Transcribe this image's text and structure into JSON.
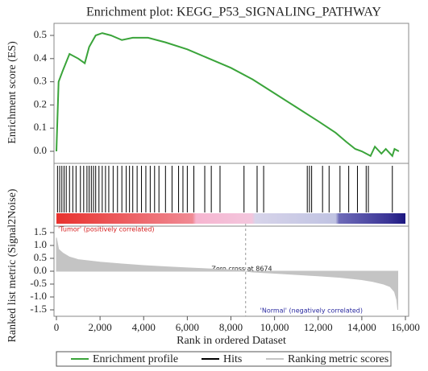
{
  "chart_data": {
    "type": "line",
    "title": "Enrichment plot: KEGG_P53_SIGNALING_PATHWAY",
    "ylabel": "Enrichment score (ES)",
    "y2label": "Ranked list metric (Signal2Noise)",
    "xlabel": "Rank in ordered Dataset",
    "xlim": [
      0,
      16000
    ],
    "xticks": [
      0,
      {
        "value": 2000,
        "label": "2,000"
      },
      {
        "value": 4000,
        "label": "4,000"
      },
      {
        "value": 6000,
        "label": "6,000"
      },
      {
        "value": 8000,
        "label": "8,000"
      },
      {
        "value": 10000,
        "label": "10,000"
      },
      {
        "value": 12000,
        "label": "12,000"
      },
      {
        "value": 14000,
        "label": "14,000"
      },
      {
        "value": 16000,
        "label": "16,000"
      }
    ],
    "ylim": [
      -0.05,
      0.55
    ],
    "yticks": [
      {
        "value": 0,
        "label": "0.0"
      },
      0.1,
      0.2,
      0.3,
      0.4,
      0.5
    ],
    "y2lim": [
      -1.75,
      1.75
    ],
    "y2ticks": [
      1.5,
      {
        "value": 1,
        "label": "1.0"
      },
      0.5,
      {
        "value": 0,
        "label": "0.0"
      },
      -0.5,
      {
        "value": -1,
        "label": "-1.0"
      },
      -1.5
    ],
    "annotations": {
      "positive": "'Tumor' (positively correlated)",
      "zero": "Zero cross at 8674",
      "negative": "'Normal' (negatively correlated)"
    },
    "zero_cross": 8674,
    "series": [
      {
        "name": "Enrichment profile",
        "color": "#3aa43a",
        "x": [
          0,
          100,
          300,
          600,
          1000,
          1300,
          1500,
          1800,
          2100,
          2500,
          3000,
          3500,
          4200,
          5000,
          6000,
          7000,
          8000,
          9000,
          10000,
          11000,
          12000,
          12800,
          13300,
          13700,
          14000,
          14400,
          14600,
          14900,
          15100,
          15400,
          15500,
          15700
        ],
        "values": [
          0,
          0.3,
          0.35,
          0.42,
          0.4,
          0.38,
          0.45,
          0.5,
          0.51,
          0.5,
          0.48,
          0.49,
          0.49,
          0.47,
          0.44,
          0.4,
          0.36,
          0.31,
          0.25,
          0.19,
          0.13,
          0.08,
          0.04,
          0.01,
          0,
          -0.02,
          0.02,
          -0.01,
          0.01,
          -0.02,
          0.01,
          0
        ]
      },
      {
        "name": "Hits",
        "color": "#000000",
        "x": [
          50,
          150,
          250,
          350,
          450,
          600,
          750,
          900,
          1100,
          1250,
          1400,
          1500,
          1600,
          1700,
          1800,
          1950,
          2100,
          2250,
          2400,
          2600,
          2800,
          3000,
          3200,
          3350,
          3500,
          3700,
          3900,
          4100,
          4300,
          4500,
          4700,
          5000,
          5300,
          5600,
          5800,
          6000,
          6300,
          6800,
          7100,
          7500,
          8600,
          9200,
          9500,
          11500,
          11600,
          11700,
          12200,
          12500,
          13000,
          13400,
          13800,
          14200,
          14300,
          15400
        ]
      },
      {
        "name": "Ranking metric scores",
        "color": "#c4c4c4",
        "axis": "y2",
        "x": [
          0,
          100,
          300,
          600,
          1000,
          2000,
          3000,
          4000,
          5000,
          6000,
          7000,
          8000,
          8674,
          9000,
          10000,
          11000,
          12000,
          13000,
          14000,
          14500,
          15000,
          15300,
          15500,
          15600,
          15650
        ],
        "values": [
          1.3,
          0.85,
          0.7,
          0.55,
          0.45,
          0.35,
          0.28,
          0.22,
          0.17,
          0.13,
          0.09,
          0.05,
          0,
          -0.03,
          -0.08,
          -0.13,
          -0.18,
          -0.24,
          -0.33,
          -0.4,
          -0.5,
          -0.6,
          -0.8,
          -1.1,
          -1.5
        ]
      }
    ]
  }
}
